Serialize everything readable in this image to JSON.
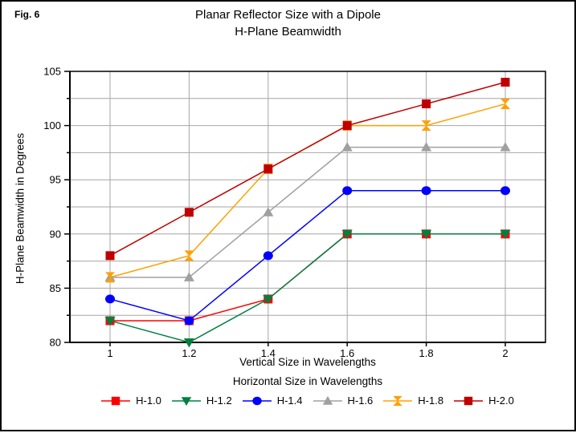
{
  "figure_label": "Fig. 6",
  "chart_data": {
    "type": "line",
    "title": "Planar Reflector Size with a Dipole",
    "subtitle": "H-Plane Beamwidth",
    "xlabel": "Vertical Size in Wavelengths",
    "ylabel": "H-Plane Beamwidth in Degrees",
    "legend_title": "Horizontal Size in Wavelengths",
    "legend_position": "bottom",
    "grid": true,
    "x": [
      1,
      1.2,
      1.4,
      1.6,
      1.8,
      2
    ],
    "x_tick_labels": [
      "1",
      "1.2",
      "1.4",
      "1.6",
      "1.8",
      "2"
    ],
    "ylim": [
      80,
      105
    ],
    "y_major_step": 5,
    "y_grid_step": 2.5,
    "axis_color": "#000000",
    "grid_color": "#A6A6A6",
    "series": [
      {
        "name": "H-1.0",
        "color": "#FF0000",
        "marker": "square",
        "values": [
          82,
          82,
          84,
          90,
          90,
          90
        ]
      },
      {
        "name": "H-1.2",
        "color": "#008040",
        "marker": "triangle-down",
        "values": [
          82,
          80,
          84,
          90,
          90,
          90
        ]
      },
      {
        "name": "H-1.4",
        "color": "#0000FF",
        "marker": "circle",
        "values": [
          84,
          82,
          88,
          94,
          94,
          94
        ]
      },
      {
        "name": "H-1.6",
        "color": "#A0A0A0",
        "marker": "triangle-up",
        "values": [
          86,
          86,
          92,
          98,
          98,
          98
        ]
      },
      {
        "name": "H-1.8",
        "color": "#FFA000",
        "marker": "hourglass",
        "values": [
          86,
          88,
          96,
          100,
          100,
          102
        ]
      },
      {
        "name": "H-2.0",
        "color": "#C00000",
        "marker": "square",
        "values": [
          88,
          92,
          96,
          100,
          102,
          104
        ]
      }
    ]
  }
}
